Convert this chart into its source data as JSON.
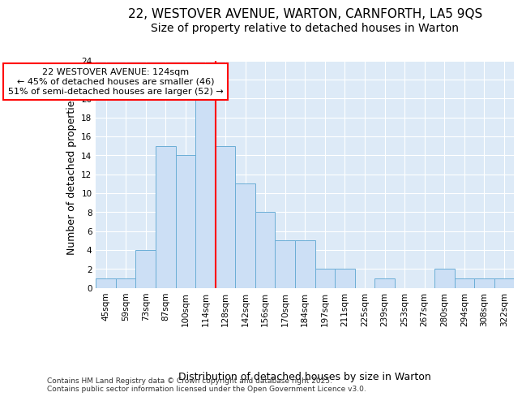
{
  "title_line1": "22, WESTOVER AVENUE, WARTON, CARNFORTH, LA5 9QS",
  "title_line2": "Size of property relative to detached houses in Warton",
  "xlabel": "Distribution of detached houses by size in Warton",
  "ylabel": "Number of detached properties",
  "categories": [
    "45sqm",
    "59sqm",
    "73sqm",
    "87sqm",
    "100sqm",
    "114sqm",
    "128sqm",
    "142sqm",
    "156sqm",
    "170sqm",
    "184sqm",
    "197sqm",
    "211sqm",
    "225sqm",
    "239sqm",
    "253sqm",
    "267sqm",
    "280sqm",
    "294sqm",
    "308sqm",
    "322sqm"
  ],
  "values": [
    1,
    1,
    4,
    15,
    14,
    20,
    15,
    11,
    8,
    5,
    5,
    2,
    2,
    0,
    1,
    0,
    0,
    2,
    1,
    1,
    1
  ],
  "bar_color": "#ccdff5",
  "bar_edge_color": "#6baed6",
  "vline_index": 5.5,
  "vline_color": "red",
  "annotation_text": "22 WESTOVER AVENUE: 124sqm\n← 45% of detached houses are smaller (46)\n51% of semi-detached houses are larger (52) →",
  "annotation_box_color": "white",
  "annotation_box_edge": "red",
  "ylim": [
    0,
    24
  ],
  "yticks": [
    0,
    2,
    4,
    6,
    8,
    10,
    12,
    14,
    16,
    18,
    20,
    22,
    24
  ],
  "background_color": "#ddeaf7",
  "grid_color": "white",
  "footer": "Contains HM Land Registry data © Crown copyright and database right 2025.\nContains public sector information licensed under the Open Government Licence v3.0.",
  "title_fontsize": 11,
  "subtitle_fontsize": 10,
  "axis_label_fontsize": 9,
  "tick_fontsize": 7.5,
  "annotation_fontsize": 8,
  "footer_fontsize": 6.5
}
